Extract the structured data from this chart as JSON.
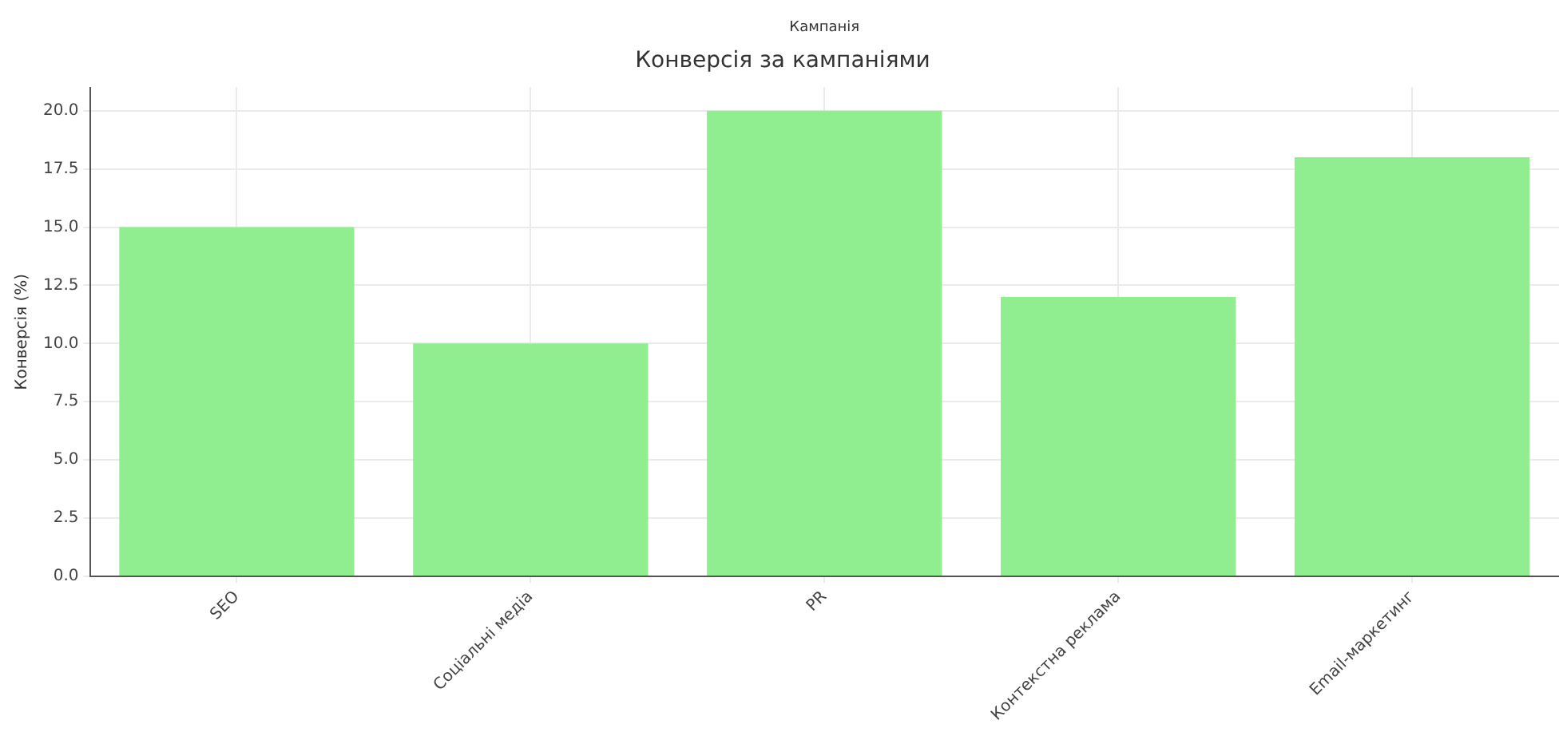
{
  "chart_data": {
    "type": "bar",
    "title": "Конверсія за кампаніями",
    "xlabel": "Кампанія",
    "ylabel": "Конверсія (%)",
    "categories": [
      "SEO",
      "Соціальні медіа",
      "PR",
      "Контекстна реклама",
      "Email-маркетинг"
    ],
    "values": [
      15,
      10,
      20,
      12,
      18
    ],
    "color": "#90ee90",
    "ylim": [
      0,
      21
    ],
    "yticks": [
      {
        "value": 0,
        "label": "0.0"
      },
      2.5,
      {
        "value": 5,
        "label": "5.0"
      },
      7.5,
      {
        "value": 10,
        "label": "10.0"
      },
      12.5,
      {
        "value": 15,
        "label": "15.0"
      },
      17.5,
      {
        "value": 20,
        "label": "20.0"
      }
    ],
    "grid": true
  }
}
